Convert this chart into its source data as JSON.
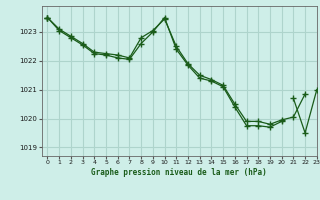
{
  "title": "Graphe pression niveau de la mer (hPa)",
  "bg_color": "#ceeee8",
  "grid_color": "#aed4cc",
  "line_color": "#1a5c1a",
  "marker_color": "#1a5c1a",
  "xlim": [
    -0.5,
    23
  ],
  "ylim": [
    1018.7,
    1023.9
  ],
  "yticks": [
    1019,
    1020,
    1021,
    1022,
    1023
  ],
  "xticks": [
    0,
    1,
    2,
    3,
    4,
    5,
    6,
    7,
    8,
    9,
    10,
    11,
    12,
    13,
    14,
    15,
    16,
    17,
    18,
    19,
    20,
    21,
    22,
    23
  ],
  "series1": [
    1023.5,
    1023.1,
    1022.85,
    1022.6,
    1022.3,
    1022.25,
    1022.2,
    1022.1,
    1022.8,
    1023.05,
    1023.45,
    1022.5,
    1021.9,
    1021.5,
    1021.35,
    1021.15,
    1020.5,
    1019.9,
    1019.9,
    1019.8,
    1019.95,
    1020.05,
    1020.85,
    null
  ],
  "series2": [
    1023.5,
    1023.05,
    1022.8,
    1022.55,
    1022.25,
    1022.2,
    1022.1,
    1022.05,
    1022.6,
    1023.0,
    1023.5,
    1022.4,
    1021.85,
    1021.4,
    1021.3,
    1021.1,
    1020.4,
    1019.75,
    1019.75,
    1019.7,
    1019.9,
    null,
    null,
    null
  ],
  "series3": [
    1023.5,
    null,
    null,
    null,
    null,
    null,
    null,
    null,
    null,
    null,
    null,
    null,
    null,
    null,
    null,
    null,
    null,
    null,
    null,
    null,
    null,
    1020.7,
    1019.5,
    1021.0
  ]
}
